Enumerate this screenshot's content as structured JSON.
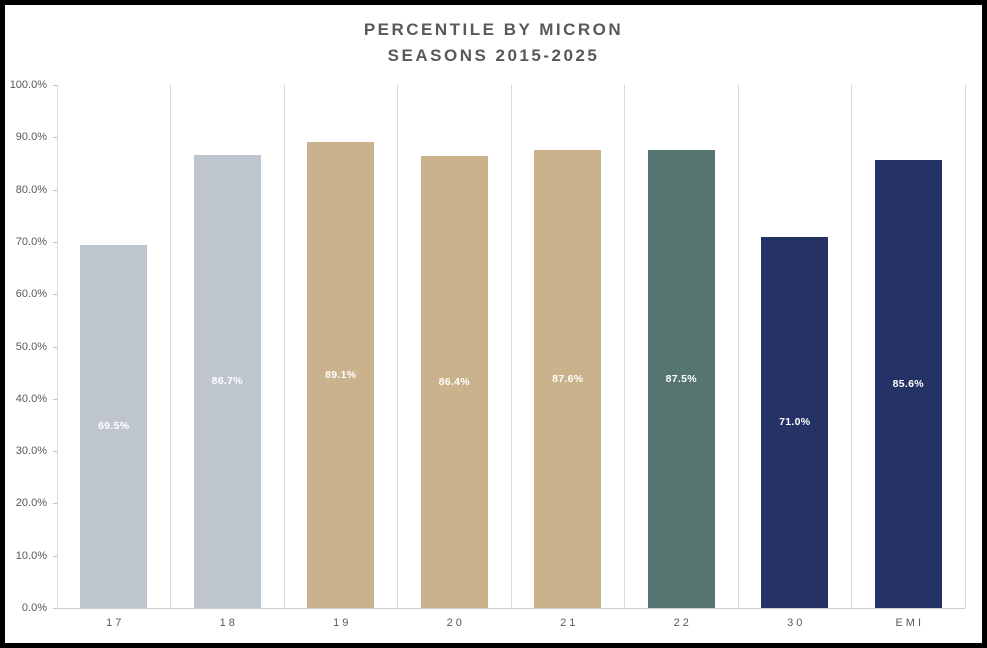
{
  "chart_data": {
    "type": "bar",
    "title": "PERCENTILE BY MICRON",
    "subtitle": "SEASONS 2015-2025",
    "categories": [
      "17",
      "18",
      "19",
      "20",
      "21",
      "22",
      "30",
      "EMI"
    ],
    "values": [
      69.5,
      86.7,
      89.1,
      86.4,
      87.6,
      87.5,
      71.0,
      85.6
    ],
    "bar_labels": [
      "69.5%",
      "86.7%",
      "89.1%",
      "86.4%",
      "87.6%",
      "87.5%",
      "71.0%",
      "85.6%"
    ],
    "bar_colors": [
      "#bec5ce",
      "#bec5ce",
      "#c9b28c",
      "#c9b28c",
      "#c9b28c",
      "#567570",
      "#253266",
      "#253266"
    ],
    "xlabel": "",
    "ylabel": "",
    "ylim": [
      0,
      100
    ],
    "ytick_step": 10,
    "ytick_labels": [
      "0.0%",
      "10.0%",
      "20.0%",
      "30.0%",
      "40.0%",
      "50.0%",
      "60.0%",
      "70.0%",
      "80.0%",
      "90.0%",
      "100.0%"
    ],
    "grid": "vertical-category-separators",
    "legend": "none",
    "bar_label_position": "inside-center",
    "colors": {
      "title_text": "#595959",
      "axis_text": "#595959",
      "gridline": "#d9d9d9",
      "bar_label_text": "#ffffff",
      "frame_border": "#000000",
      "background": "#ffffff"
    }
  }
}
